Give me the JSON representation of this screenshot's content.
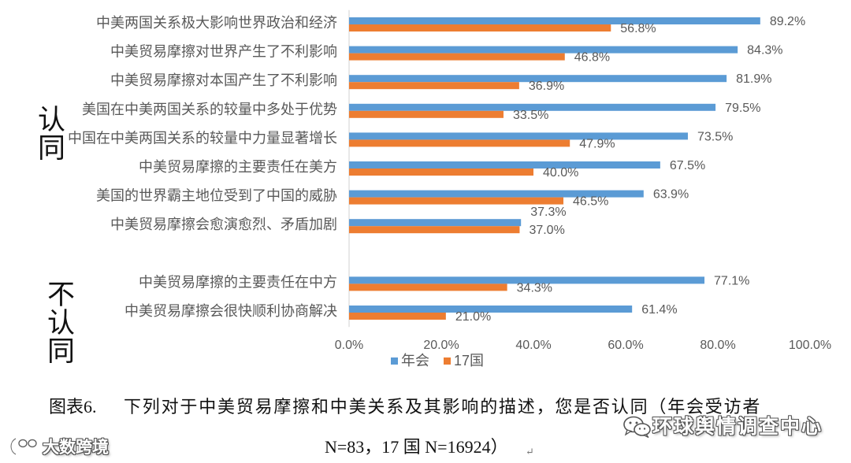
{
  "chart_data": {
    "type": "bar",
    "orientation": "horizontal",
    "categories": [
      "中美两国关系极大影响世界政治和经济",
      "中美贸易摩擦对世界产生了不利影响",
      "中美贸易摩擦对本国产生了不利影响",
      "美国在中美两国关系的较量中多处于优势",
      "中国在中美两国关系的较量中力量显著增长",
      "中美贸易摩擦的主要责任在美方",
      "美国的世界霸主地位受到了中国的威胁",
      "中美贸易摩擦会愈演愈烈、矛盾加剧",
      "中美贸易摩擦的主要责任在中方",
      "中美贸易摩擦会很快顺利协商解决"
    ],
    "groups": [
      "认同",
      "不认同"
    ],
    "category_groups": [
      "认同",
      "认同",
      "认同",
      "认同",
      "认同",
      "认同",
      "认同",
      "认同",
      "不认同",
      "不认同"
    ],
    "series": [
      {
        "name": "年会",
        "color": "#5B9BD5",
        "values": [
          89.2,
          84.3,
          81.9,
          79.5,
          73.5,
          67.5,
          63.9,
          37.3,
          77.1,
          61.4
        ]
      },
      {
        "name": "17国",
        "color": "#ED7D31",
        "values": [
          56.8,
          46.8,
          36.9,
          33.5,
          47.9,
          40.0,
          46.5,
          37.0,
          34.3,
          21.0
        ]
      }
    ],
    "value_unit": "%",
    "xlim": [
      0,
      100
    ],
    "xticks": [
      0,
      20,
      40,
      60,
      80,
      100
    ],
    "xtick_labels": [
      "0.0%",
      "20.0%",
      "40.0%",
      "60.0%",
      "80.0%",
      "100.0%"
    ],
    "legend": "bottom",
    "grid": false,
    "data_labels": true
  },
  "caption": {
    "label": "图表6.",
    "line1": "下列对于中美贸易摩擦和中美关系及其影响的描述，您是否认同（年会受访者",
    "line2": "N=83，17 国 N=16924）",
    "paragraph_mark": "↵"
  },
  "watermarks": {
    "right_text": "环球舆情调查中心",
    "right_icon": "wechat-icon",
    "left_text": "大数跨境",
    "left_icon": "big-data-logo-icon"
  }
}
